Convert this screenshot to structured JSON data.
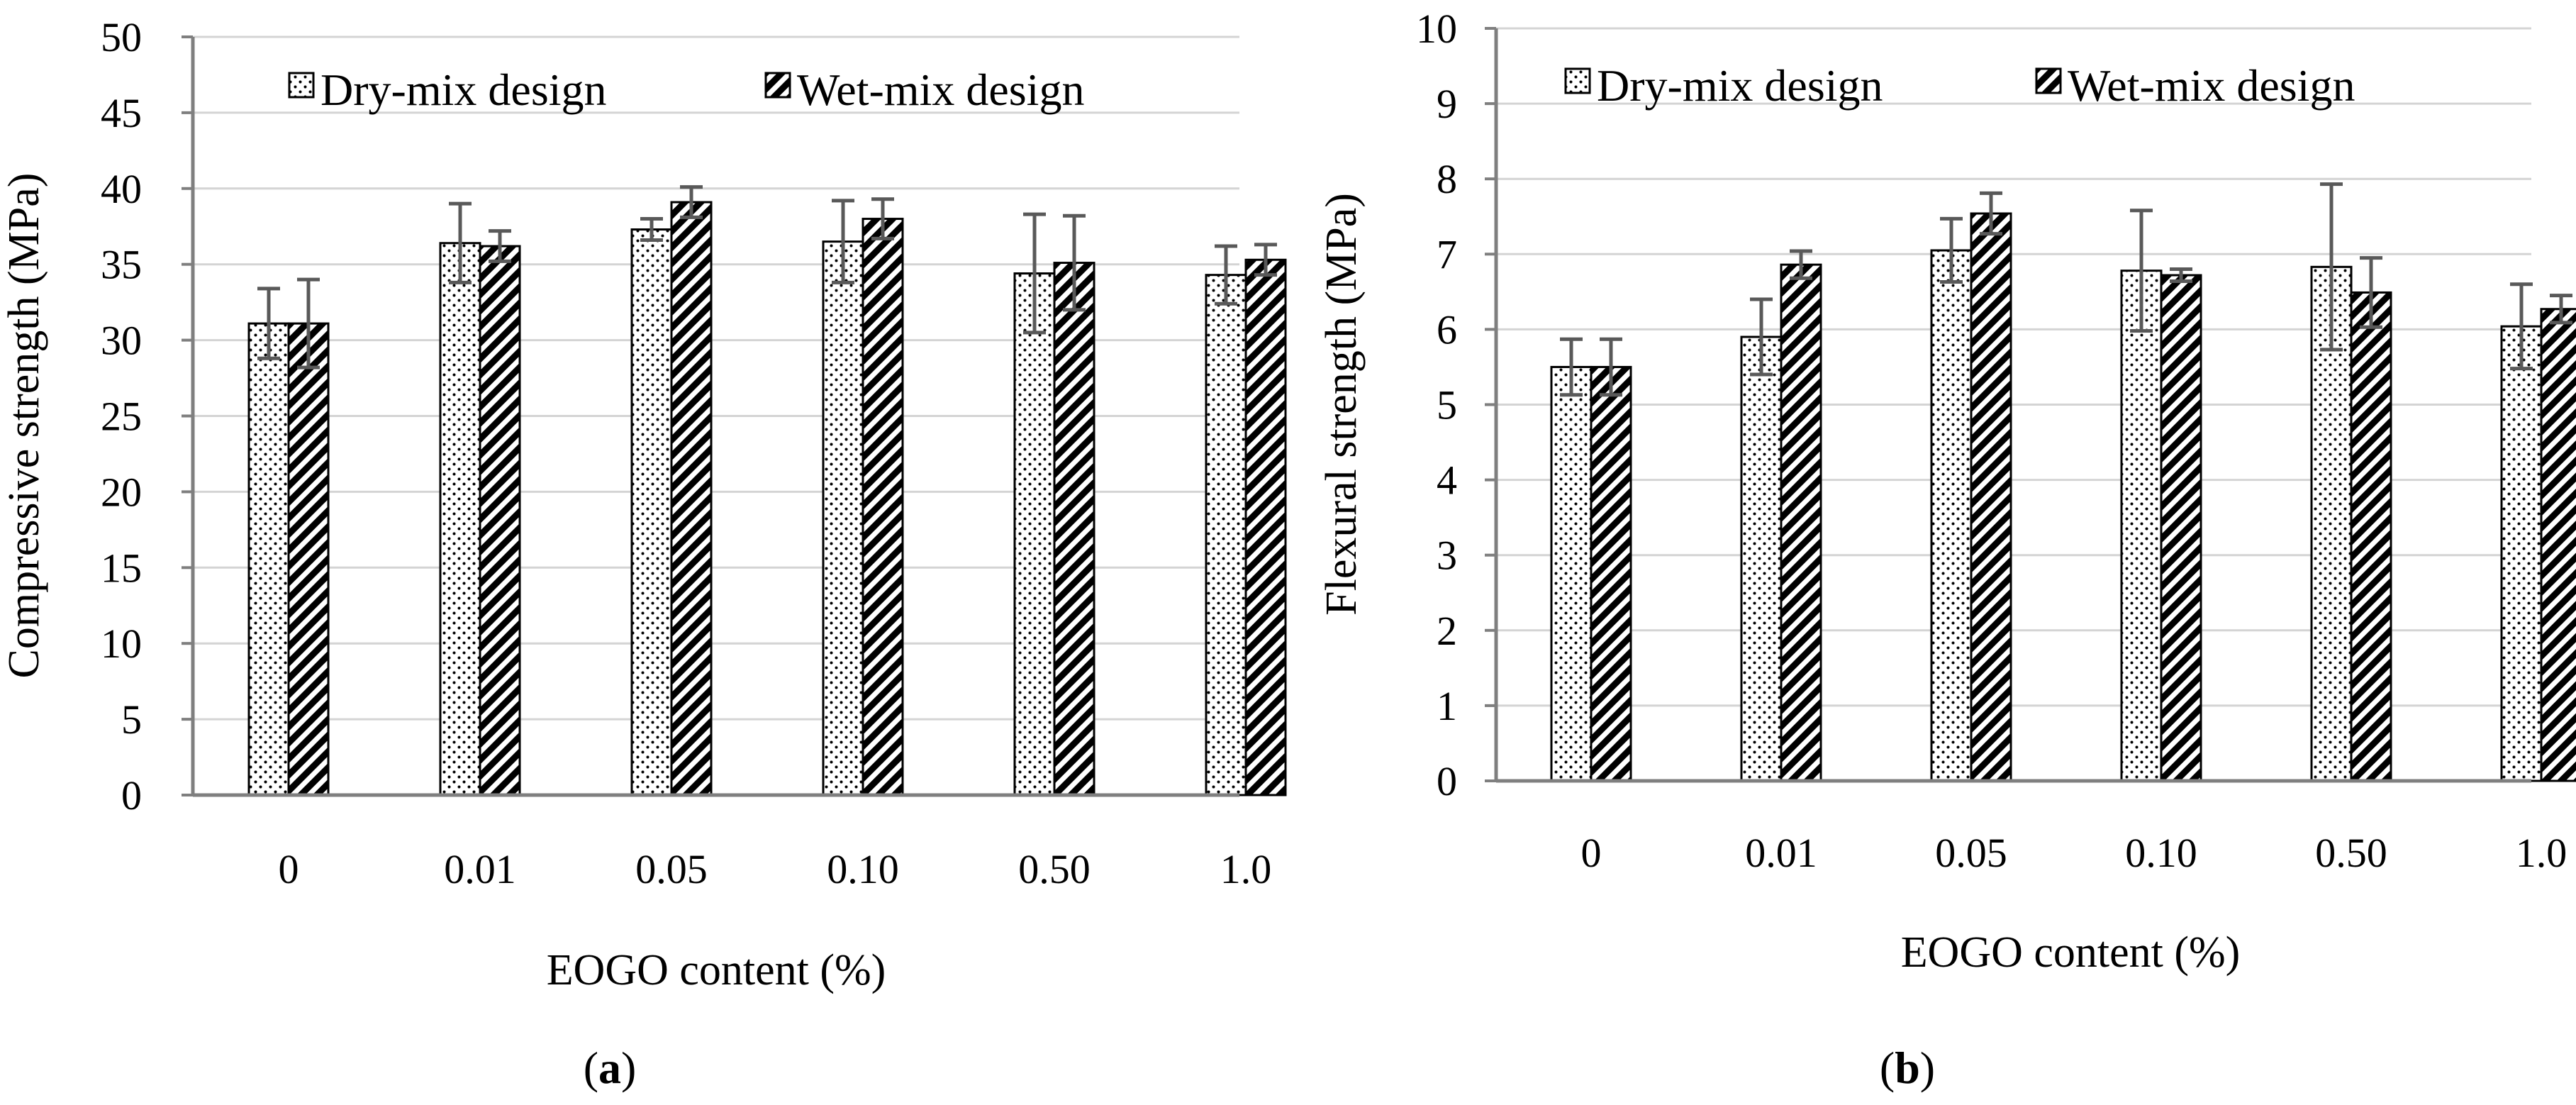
{
  "chart_data": [
    {
      "type": "bar",
      "panel_label": "a",
      "title": "",
      "categories": [
        "0",
        "0.01",
        "0.05",
        "0.10",
        "0.50",
        "1.0"
      ],
      "xlabel": "EOGO content (%)",
      "ylabel": "Compressive strength (MPa)",
      "ylim": [
        0,
        50
      ],
      "yticks": [
        0,
        5,
        10,
        15,
        20,
        25,
        30,
        35,
        40,
        45,
        50
      ],
      "grid": true,
      "legend_position": "top",
      "series": [
        {
          "name": "Dry-mix design",
          "pattern": "dots",
          "values": [
            31.1,
            36.4,
            37.3,
            36.5,
            34.4,
            34.3
          ],
          "errors": [
            2.3,
            2.6,
            0.7,
            2.7,
            3.9,
            1.9
          ]
        },
        {
          "name": "Wet-mix design",
          "pattern": "hatch",
          "values": [
            31.1,
            36.2,
            39.1,
            38.0,
            35.1,
            35.3
          ],
          "errors": [
            2.9,
            1.0,
            1.0,
            1.3,
            3.1,
            1.0
          ]
        }
      ]
    },
    {
      "type": "bar",
      "panel_label": "b",
      "title": "",
      "categories": [
        "0",
        "0.01",
        "0.05",
        "0.10",
        "0.50",
        "1.0"
      ],
      "xlabel": "EOGO content (%)",
      "ylabel": "Flexural strength (MPa)",
      "ylim": [
        0,
        10
      ],
      "yticks": [
        0,
        1,
        2,
        3,
        4,
        5,
        6,
        7,
        8,
        9,
        10
      ],
      "grid": true,
      "legend_position": "top",
      "series": [
        {
          "name": "Dry-mix design",
          "pattern": "dots",
          "values": [
            5.5,
            5.9,
            7.05,
            6.78,
            6.83,
            6.04
          ],
          "errors": [
            0.37,
            0.5,
            0.42,
            0.8,
            1.1,
            0.56
          ]
        },
        {
          "name": "Wet-mix design",
          "pattern": "hatch",
          "values": [
            5.5,
            6.86,
            7.54,
            6.72,
            6.49,
            6.27
          ],
          "errors": [
            0.37,
            0.18,
            0.27,
            0.08,
            0.46,
            0.18
          ]
        }
      ]
    }
  ]
}
